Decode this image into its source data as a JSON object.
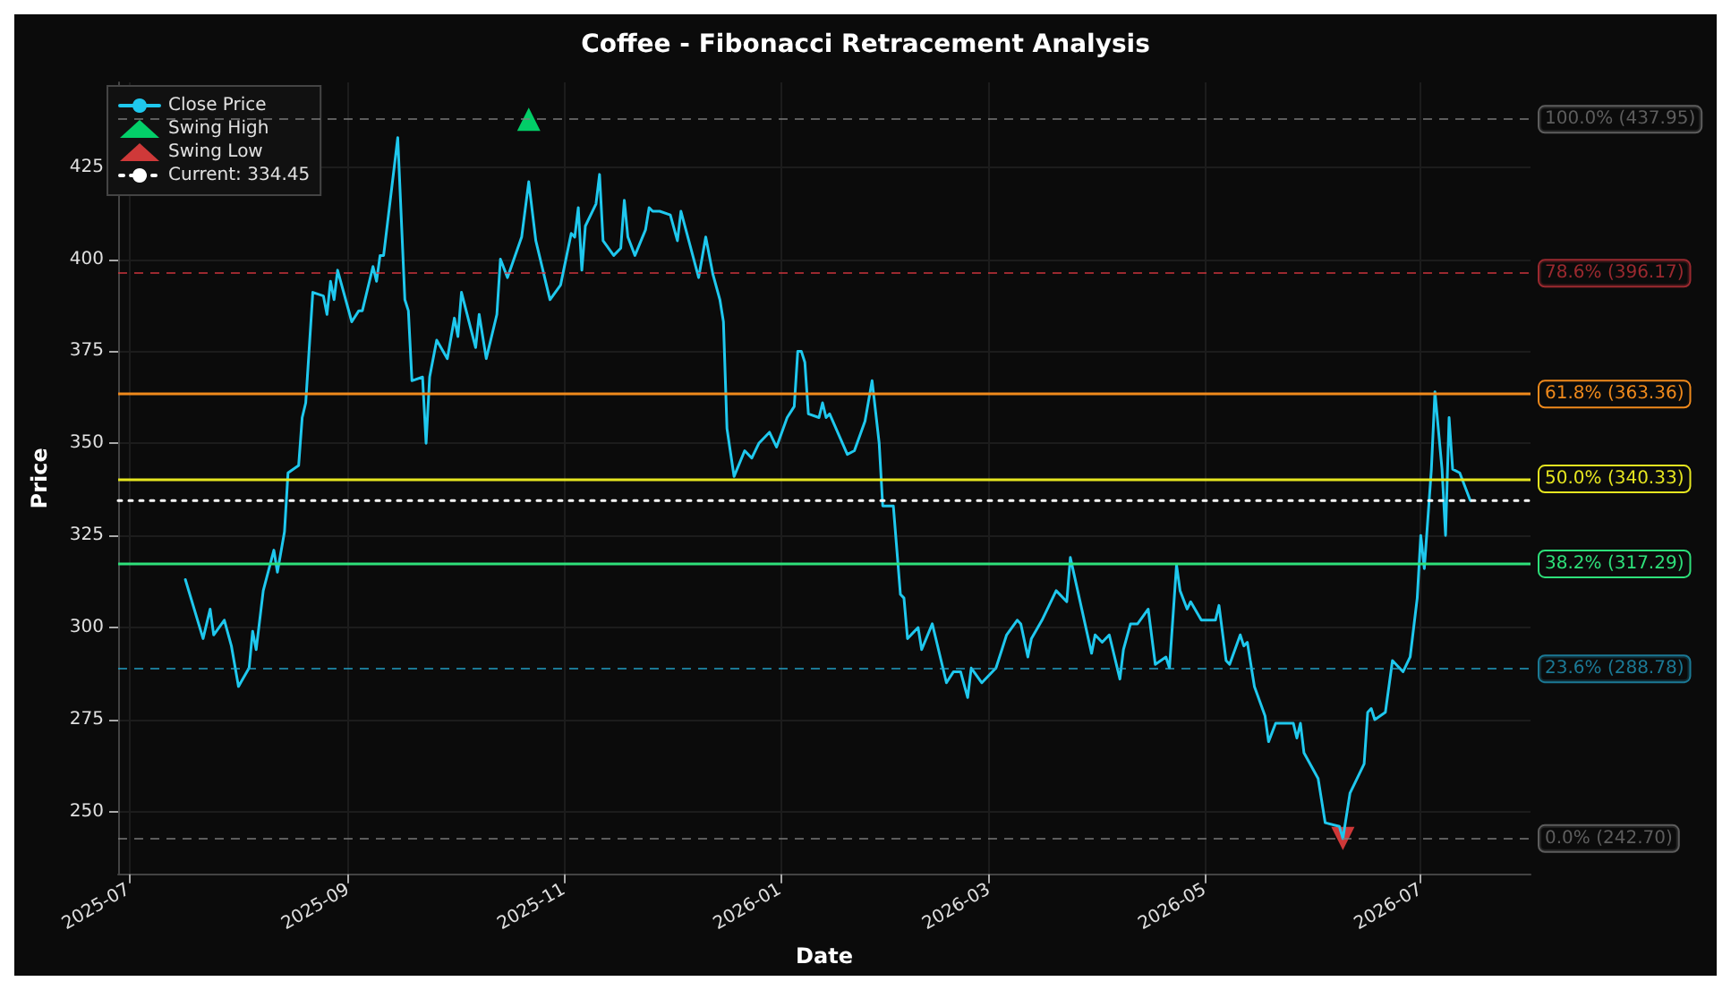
{
  "chart_data": {
    "type": "line",
    "title": "Coffee - Fibonacci Retracement Analysis",
    "xlabel": "Date",
    "ylabel": "Price",
    "xlim": [
      "2025-06-28",
      "2026-08-01"
    ],
    "xticks": [
      "2025-07",
      "2025-09",
      "2025-11",
      "2026-01",
      "2026-03",
      "2026-05",
      "2026-07"
    ],
    "ylim": [
      233,
      448
    ],
    "yticks": [
      250,
      275,
      300,
      325,
      350,
      375,
      400,
      425
    ],
    "grid": true,
    "legend": "top left",
    "series": [
      {
        "name": "Close Price",
        "color": "#1fc8ee",
        "marker": "none",
        "x": [
          "2025-07-17",
          "2025-07-22",
          "2025-07-24",
          "2025-07-25",
          "2025-07-28",
          "2025-07-30",
          "2025-08-01",
          "2025-08-04",
          "2025-08-05",
          "2025-08-06",
          "2025-08-08",
          "2025-08-11",
          "2025-08-12",
          "2025-08-14",
          "2025-08-15",
          "2025-08-18",
          "2025-08-19",
          "2025-08-20",
          "2025-08-22",
          "2025-08-25",
          "2025-08-26",
          "2025-08-27",
          "2025-08-28",
          "2025-08-29",
          "2025-09-02",
          "2025-09-04",
          "2025-09-05",
          "2025-09-08",
          "2025-09-09",
          "2025-09-10",
          "2025-09-11",
          "2025-09-15",
          "2025-09-17",
          "2025-09-18",
          "2025-09-19",
          "2025-09-22",
          "2025-09-23",
          "2025-09-24",
          "2025-09-26",
          "2025-09-29",
          "2025-10-01",
          "2025-10-02",
          "2025-10-03",
          "2025-10-07",
          "2025-10-08",
          "2025-10-10",
          "2025-10-13",
          "2025-10-14",
          "2025-10-16",
          "2025-10-20",
          "2025-10-22",
          "2025-10-24",
          "2025-10-28",
          "2025-10-31",
          "2025-11-03",
          "2025-11-04",
          "2025-11-05",
          "2025-11-06",
          "2025-11-07",
          "2025-11-10",
          "2025-11-11",
          "2025-11-12",
          "2025-11-15",
          "2025-11-17",
          "2025-11-18",
          "2025-11-19",
          "2025-11-21",
          "2025-11-24",
          "2025-11-25",
          "2025-11-26",
          "2025-11-28",
          "2025-12-01",
          "2025-12-03",
          "2025-12-04",
          "2025-12-09",
          "2025-12-11",
          "2025-12-13",
          "2025-12-15",
          "2025-12-16",
          "2025-12-17",
          "2025-12-19",
          "2025-12-22",
          "2025-12-24",
          "2025-12-26",
          "2025-12-29",
          "2025-12-31",
          "2026-01-03",
          "2026-01-05",
          "2026-01-06",
          "2026-01-07",
          "2026-01-08",
          "2026-01-09",
          "2026-01-12",
          "2026-01-13",
          "2026-01-14",
          "2026-01-15",
          "2026-01-20",
          "2026-01-22",
          "2026-01-25",
          "2026-01-27",
          "2026-01-29",
          "2026-01-30",
          "2026-02-02",
          "2026-02-04",
          "2026-02-05",
          "2026-02-06",
          "2026-02-09",
          "2026-02-10",
          "2026-02-13",
          "2026-02-17",
          "2026-02-19",
          "2026-02-21",
          "2026-02-23",
          "2026-02-24",
          "2026-02-27",
          "2026-03-03",
          "2026-03-06",
          "2026-03-09",
          "2026-03-10",
          "2026-03-12",
          "2026-03-13",
          "2026-03-16",
          "2026-03-20",
          "2026-03-23",
          "2026-03-24",
          "2026-03-27",
          "2026-03-30",
          "2026-03-31",
          "2026-04-02",
          "2026-04-04",
          "2026-04-07",
          "2026-04-08",
          "2026-04-10",
          "2026-04-12",
          "2026-04-15",
          "2026-04-17",
          "2026-04-20",
          "2026-04-21",
          "2026-04-23",
          "2026-04-24",
          "2026-04-26",
          "2026-04-27",
          "2026-04-30",
          "2026-05-04",
          "2026-05-05",
          "2026-05-07",
          "2026-05-08",
          "2026-05-11",
          "2026-05-12",
          "2026-05-13",
          "2026-05-15",
          "2026-05-18",
          "2026-05-19",
          "2026-05-21",
          "2026-05-26",
          "2026-05-27",
          "2026-05-28",
          "2026-05-29",
          "2026-06-02",
          "2026-06-04",
          "2026-06-08",
          "2026-06-09",
          "2026-06-11",
          "2026-06-15",
          "2026-06-16",
          "2026-06-17",
          "2026-06-18",
          "2026-06-21",
          "2026-06-23",
          "2026-06-26",
          "2026-06-28",
          "2026-06-30",
          "2026-07-01",
          "2026-07-02",
          "2026-07-04",
          "2026-07-05",
          "2026-07-07",
          "2026-07-08",
          "2026-07-09",
          "2026-07-10",
          "2026-07-12",
          "2026-07-15"
        ],
        "values": [
          313,
          297,
          305,
          298,
          302,
          295,
          284,
          289,
          299,
          294,
          310,
          321,
          315,
          326,
          342,
          344,
          357,
          361,
          391,
          390,
          385,
          394,
          389,
          397,
          383,
          386,
          386,
          398,
          394,
          401,
          401,
          433,
          389,
          386,
          367,
          368,
          350,
          368,
          378,
          373,
          384,
          379,
          391,
          376,
          385,
          373,
          385,
          400,
          395,
          406,
          421,
          405,
          389,
          393,
          407,
          406,
          414,
          397,
          409,
          415,
          423,
          405,
          401,
          403,
          416,
          406,
          401,
          408,
          414,
          413,
          413,
          412,
          405,
          413,
          395,
          406,
          396,
          389,
          383,
          354,
          341,
          348,
          346,
          350,
          353,
          349,
          357,
          360,
          375,
          375,
          372,
          358,
          357,
          361,
          357,
          358,
          347,
          348,
          356,
          367,
          350,
          333,
          333,
          309,
          308,
          297,
          300,
          294,
          301,
          285,
          288,
          288,
          281,
          289,
          285,
          289,
          298,
          302,
          301,
          292,
          297,
          302,
          310,
          307,
          319,
          306,
          293,
          298,
          296,
          298,
          286,
          294,
          301,
          301,
          305,
          290,
          292,
          289,
          317,
          310,
          305,
          307,
          302,
          302,
          306,
          291,
          290,
          298,
          295,
          296,
          284,
          276,
          269,
          274,
          274,
          270,
          274,
          266,
          259,
          247,
          246,
          242.7,
          255,
          263,
          277,
          278,
          275,
          277,
          291,
          288,
          292,
          308,
          325,
          316,
          343,
          364,
          343,
          325,
          357,
          343,
          342,
          334.45
        ]
      },
      {
        "name": "Swing High",
        "type": "scatter",
        "color": "#00ff7f",
        "marker": "triangle",
        "x": [
          "2025-10-22"
        ],
        "values": [
          437.95
        ]
      },
      {
        "name": "Swing Low",
        "type": "scatter",
        "color": "#ff4444",
        "marker": "triangle_down",
        "x": [
          "2026-06-09"
        ],
        "values": [
          242.7
        ]
      },
      {
        "name": "Current: 334.45",
        "color": "#ffffff",
        "marker": "none",
        "line_style": "dotted",
        "x": [
          "2025-06-28",
          "2026-08-01"
        ],
        "values": [
          334.45,
          334.45
        ]
      }
    ],
    "ref_lines": [
      {
        "axis": "y",
        "value": 437.95,
        "label": "100.0% (437.95)",
        "color": "#808080",
        "line_style": "dashed"
      },
      {
        "axis": "y",
        "value": 396.17,
        "label": "78.6% (396.17)",
        "color": "#d9363e",
        "line_style": "dashed"
      },
      {
        "axis": "y",
        "value": 363.36,
        "label": "61.8% (363.36)",
        "color": "#f08a1c",
        "line_style": "solid"
      },
      {
        "axis": "y",
        "value": 340.33,
        "label": "50.0% (340.33)",
        "color": "#e6e620",
        "line_style": "solid"
      },
      {
        "axis": "y",
        "value": 317.29,
        "label": "38.2% (317.29)",
        "color": "#2ee07a",
        "line_style": "solid"
      },
      {
        "axis": "y",
        "value": 288.78,
        "label": "23.6% (288.78)",
        "color": "#22a8d0",
        "line_style": "dashed"
      },
      {
        "axis": "y",
        "value": 242.7,
        "label": "0.0% (242.70)",
        "color": "#808080",
        "line_style": "dashed"
      }
    ]
  }
}
